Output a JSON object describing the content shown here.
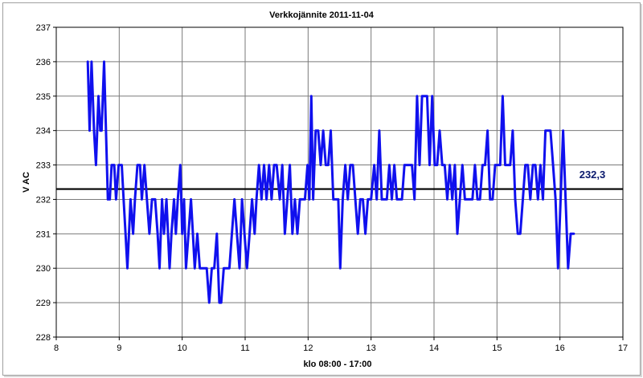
{
  "chart_data": {
    "type": "line",
    "title": "Verkkojännite 2011-11-04",
    "xlabel": "klo 08:00 - 17:00",
    "ylabel": "V AC",
    "xlim": [
      8,
      17
    ],
    "ylim": [
      228,
      237
    ],
    "x_ticks": [
      8,
      9,
      10,
      11,
      12,
      13,
      14,
      15,
      16,
      17
    ],
    "y_ticks": [
      228,
      229,
      230,
      231,
      232,
      233,
      234,
      235,
      236,
      237
    ],
    "grid": true,
    "series_color": "#1010ee",
    "mean_line": {
      "value": 232.3,
      "label": "232,3",
      "color": "#000000"
    },
    "series": [
      {
        "values": [
          [
            8.5,
            236
          ],
          [
            8.53,
            234
          ],
          [
            8.56,
            236
          ],
          [
            8.6,
            234
          ],
          [
            8.63,
            233
          ],
          [
            8.67,
            235
          ],
          [
            8.7,
            234
          ],
          [
            8.72,
            234
          ],
          [
            8.76,
            236
          ],
          [
            8.82,
            232
          ],
          [
            8.85,
            232
          ],
          [
            8.88,
            233
          ],
          [
            8.92,
            233
          ],
          [
            8.95,
            232
          ],
          [
            8.99,
            233
          ],
          [
            9.04,
            233
          ],
          [
            9.07,
            232
          ],
          [
            9.1,
            231
          ],
          [
            9.13,
            230
          ],
          [
            9.18,
            232
          ],
          [
            9.22,
            231
          ],
          [
            9.25,
            232
          ],
          [
            9.29,
            233
          ],
          [
            9.33,
            233
          ],
          [
            9.36,
            232
          ],
          [
            9.4,
            233
          ],
          [
            9.44,
            232
          ],
          [
            9.48,
            231
          ],
          [
            9.52,
            232
          ],
          [
            9.57,
            232
          ],
          [
            9.61,
            231
          ],
          [
            9.64,
            230
          ],
          [
            9.68,
            232
          ],
          [
            9.71,
            231
          ],
          [
            9.75,
            232
          ],
          [
            9.8,
            230
          ],
          [
            9.83,
            231
          ],
          [
            9.87,
            232
          ],
          [
            9.9,
            231
          ],
          [
            9.93,
            232
          ],
          [
            9.97,
            233
          ],
          [
            10.0,
            231
          ],
          [
            10.03,
            232
          ],
          [
            10.06,
            230
          ],
          [
            10.1,
            231
          ],
          [
            10.14,
            232
          ],
          [
            10.17,
            231
          ],
          [
            10.2,
            230
          ],
          [
            10.24,
            231
          ],
          [
            10.28,
            230
          ],
          [
            10.32,
            230
          ],
          [
            10.35,
            230
          ],
          [
            10.39,
            230
          ],
          [
            10.43,
            229
          ],
          [
            10.47,
            230
          ],
          [
            10.51,
            230
          ],
          [
            10.55,
            231
          ],
          [
            10.59,
            229
          ],
          [
            10.62,
            229
          ],
          [
            10.66,
            230
          ],
          [
            10.7,
            230
          ],
          [
            10.75,
            230
          ],
          [
            10.79,
            231
          ],
          [
            10.83,
            232
          ],
          [
            10.87,
            231
          ],
          [
            10.91,
            230
          ],
          [
            10.95,
            232
          ],
          [
            10.99,
            231
          ],
          [
            11.03,
            230
          ],
          [
            11.07,
            231
          ],
          [
            11.11,
            232
          ],
          [
            11.15,
            231
          ],
          [
            11.18,
            232
          ],
          [
            11.22,
            233
          ],
          [
            11.26,
            232
          ],
          [
            11.3,
            233
          ],
          [
            11.34,
            232
          ],
          [
            11.38,
            233
          ],
          [
            11.42,
            232
          ],
          [
            11.46,
            233
          ],
          [
            11.5,
            233
          ],
          [
            11.55,
            232
          ],
          [
            11.59,
            233
          ],
          [
            11.63,
            231
          ],
          [
            11.67,
            232
          ],
          [
            11.71,
            233
          ],
          [
            11.75,
            231
          ],
          [
            11.79,
            232
          ],
          [
            11.83,
            231
          ],
          [
            11.87,
            232
          ],
          [
            11.91,
            232
          ],
          [
            11.95,
            232
          ],
          [
            11.99,
            233
          ],
          [
            12.02,
            232
          ],
          [
            12.05,
            235
          ],
          [
            12.08,
            232
          ],
          [
            12.12,
            234
          ],
          [
            12.16,
            234
          ],
          [
            12.2,
            233
          ],
          [
            12.24,
            234
          ],
          [
            12.28,
            233
          ],
          [
            12.32,
            233
          ],
          [
            12.36,
            234
          ],
          [
            12.4,
            232
          ],
          [
            12.44,
            232
          ],
          [
            12.48,
            232
          ],
          [
            12.51,
            230
          ],
          [
            12.55,
            232
          ],
          [
            12.59,
            233
          ],
          [
            12.63,
            232
          ],
          [
            12.67,
            233
          ],
          [
            12.71,
            233
          ],
          [
            12.75,
            232
          ],
          [
            12.79,
            231
          ],
          [
            12.83,
            232
          ],
          [
            12.87,
            232
          ],
          [
            12.91,
            231
          ],
          [
            12.95,
            232
          ],
          [
            13.0,
            232
          ],
          [
            13.05,
            233
          ],
          [
            13.09,
            232
          ],
          [
            13.13,
            234
          ],
          [
            13.17,
            232
          ],
          [
            13.21,
            232
          ],
          [
            13.25,
            232
          ],
          [
            13.29,
            233
          ],
          [
            13.33,
            232
          ],
          [
            13.37,
            233
          ],
          [
            13.41,
            232
          ],
          [
            13.45,
            232
          ],
          [
            13.49,
            232
          ],
          [
            13.53,
            233
          ],
          [
            13.57,
            233
          ],
          [
            13.61,
            233
          ],
          [
            13.65,
            233
          ],
          [
            13.69,
            232
          ],
          [
            13.73,
            235
          ],
          [
            13.77,
            233
          ],
          [
            13.81,
            235
          ],
          [
            13.85,
            235
          ],
          [
            13.89,
            235
          ],
          [
            13.93,
            233
          ],
          [
            13.97,
            235
          ],
          [
            14.01,
            233
          ],
          [
            14.05,
            233
          ],
          [
            14.09,
            234
          ],
          [
            14.13,
            233
          ],
          [
            14.17,
            233
          ],
          [
            14.21,
            232
          ],
          [
            14.25,
            233
          ],
          [
            14.29,
            232
          ],
          [
            14.33,
            233
          ],
          [
            14.37,
            231
          ],
          [
            14.41,
            232
          ],
          [
            14.45,
            233
          ],
          [
            14.49,
            232
          ],
          [
            14.53,
            232
          ],
          [
            14.57,
            232
          ],
          [
            14.61,
            232
          ],
          [
            14.65,
            233
          ],
          [
            14.69,
            232
          ],
          [
            14.73,
            232
          ],
          [
            14.77,
            233
          ],
          [
            14.81,
            233
          ],
          [
            14.85,
            234
          ],
          [
            14.89,
            232
          ],
          [
            14.93,
            232
          ],
          [
            14.97,
            233
          ],
          [
            15.01,
            233
          ],
          [
            15.05,
            233
          ],
          [
            15.09,
            235
          ],
          [
            15.13,
            233
          ],
          [
            15.17,
            233
          ],
          [
            15.21,
            233
          ],
          [
            15.25,
            234
          ],
          [
            15.29,
            232
          ],
          [
            15.33,
            231
          ],
          [
            15.37,
            231
          ],
          [
            15.41,
            232
          ],
          [
            15.45,
            233
          ],
          [
            15.49,
            233
          ],
          [
            15.53,
            232
          ],
          [
            15.57,
            233
          ],
          [
            15.61,
            233
          ],
          [
            15.65,
            232
          ],
          [
            15.69,
            233
          ],
          [
            15.73,
            232
          ],
          [
            15.77,
            234
          ],
          [
            15.81,
            234
          ],
          [
            15.85,
            234
          ],
          [
            15.89,
            233
          ],
          [
            15.93,
            232
          ],
          [
            15.97,
            230
          ],
          [
            16.01,
            232
          ],
          [
            16.05,
            234
          ],
          [
            16.09,
            232
          ],
          [
            16.13,
            230
          ],
          [
            16.17,
            231
          ],
          [
            16.22,
            231
          ]
        ]
      }
    ]
  }
}
